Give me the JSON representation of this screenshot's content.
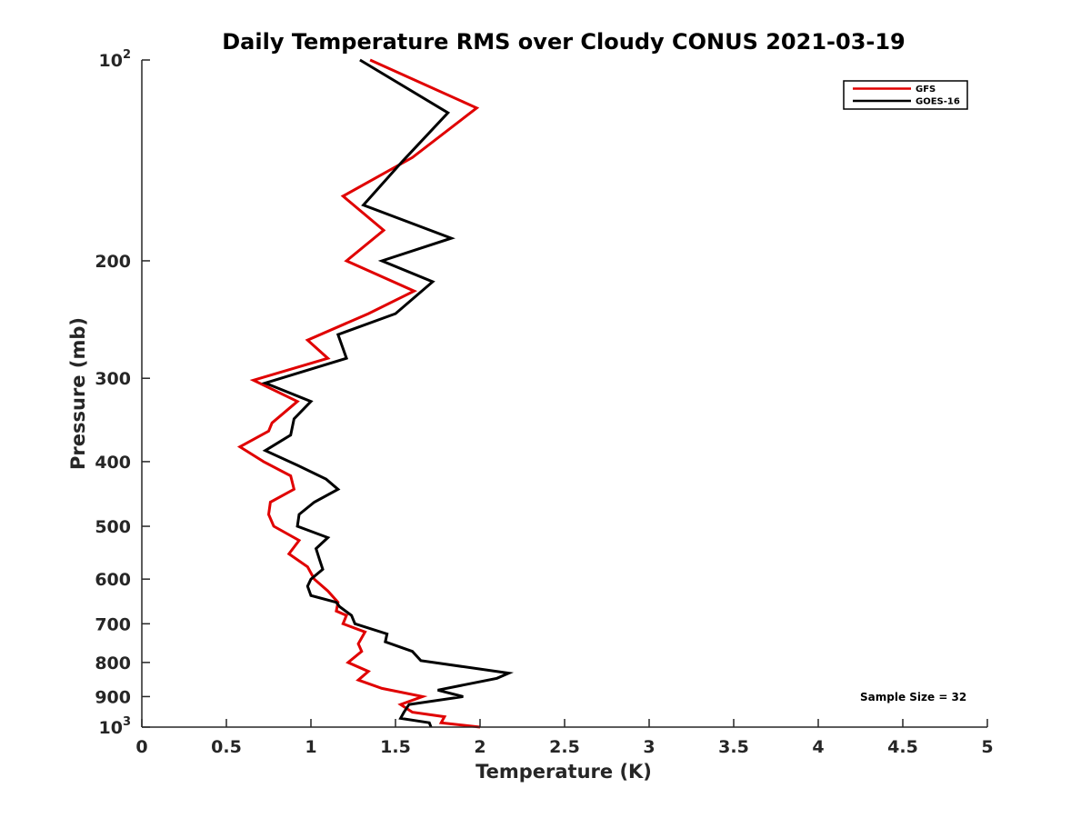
{
  "chart_data": {
    "type": "line",
    "title": "Daily Temperature RMS over Cloudy CONUS 2021-03-19",
    "xlabel": "Temperature (K)",
    "ylabel": "Pressure (mb)",
    "xlim": [
      0,
      5
    ],
    "ylim": [
      100,
      1000
    ],
    "yscale": "log",
    "yreverse": true,
    "xticks": [
      {
        "value": 0,
        "label": "0"
      },
      {
        "value": 0.5,
        "label": "0.5"
      },
      {
        "value": 1,
        "label": "1"
      },
      {
        "value": 1.5,
        "label": "1.5"
      },
      {
        "value": 2,
        "label": "2"
      },
      {
        "value": 2.5,
        "label": "2.5"
      },
      {
        "value": 3,
        "label": "3"
      },
      {
        "value": 3.5,
        "label": "3.5"
      },
      {
        "value": 4,
        "label": "4"
      },
      {
        "value": 4.5,
        "label": "4.5"
      },
      {
        "value": 5,
        "label": "5"
      }
    ],
    "yticks": [
      {
        "value": 100,
        "base": "10",
        "exp": "2"
      },
      {
        "value": 200,
        "label": "200"
      },
      {
        "value": 300,
        "label": "300"
      },
      {
        "value": 400,
        "label": "400"
      },
      {
        "value": 500,
        "label": "500"
      },
      {
        "value": 600,
        "label": "600"
      },
      {
        "value": 700,
        "label": "700"
      },
      {
        "value": 800,
        "label": "800"
      },
      {
        "value": 900,
        "label": "900"
      },
      {
        "value": 1000,
        "base": "10",
        "exp": "3"
      }
    ],
    "legend_position": "top-right",
    "annotation": "Sample Size = 32",
    "series": [
      {
        "name": "GFS",
        "color": "#e00000",
        "points": [
          [
            1.35,
            100
          ],
          [
            1.98,
            118
          ],
          [
            1.6,
            140
          ],
          [
            1.19,
            160
          ],
          [
            1.43,
            180
          ],
          [
            1.21,
            200
          ],
          [
            1.61,
            222
          ],
          [
            1.34,
            240
          ],
          [
            0.98,
            263
          ],
          [
            1.1,
            280
          ],
          [
            0.66,
            302
          ],
          [
            0.92,
            325
          ],
          [
            0.77,
            350
          ],
          [
            0.75,
            360
          ],
          [
            0.58,
            380
          ],
          [
            0.72,
            400
          ],
          [
            0.88,
            420
          ],
          [
            0.9,
            440
          ],
          [
            0.76,
            460
          ],
          [
            0.75,
            480
          ],
          [
            0.78,
            500
          ],
          [
            0.93,
            525
          ],
          [
            0.87,
            550
          ],
          [
            0.98,
            575
          ],
          [
            1.02,
            600
          ],
          [
            1.1,
            625
          ],
          [
            1.16,
            650
          ],
          [
            1.15,
            670
          ],
          [
            1.21,
            680
          ],
          [
            1.19,
            700
          ],
          [
            1.32,
            720
          ],
          [
            1.28,
            750
          ],
          [
            1.3,
            770
          ],
          [
            1.22,
            800
          ],
          [
            1.34,
            825
          ],
          [
            1.28,
            850
          ],
          [
            1.42,
            875
          ],
          [
            1.66,
            900
          ],
          [
            1.53,
            925
          ],
          [
            1.6,
            950
          ],
          [
            1.79,
            965
          ],
          [
            1.77,
            985
          ],
          [
            2.0,
            1000
          ]
        ]
      },
      {
        "name": "GOES-16",
        "color": "#000000",
        "points": [
          [
            1.29,
            100
          ],
          [
            1.81,
            120
          ],
          [
            1.54,
            142
          ],
          [
            1.31,
            165
          ],
          [
            1.83,
            185
          ],
          [
            1.42,
            200
          ],
          [
            1.72,
            215
          ],
          [
            1.5,
            240
          ],
          [
            1.16,
            258
          ],
          [
            1.21,
            280
          ],
          [
            0.73,
            305
          ],
          [
            1.0,
            325
          ],
          [
            0.9,
            345
          ],
          [
            0.88,
            365
          ],
          [
            0.73,
            385
          ],
          [
            0.92,
            405
          ],
          [
            1.09,
            425
          ],
          [
            1.16,
            440
          ],
          [
            1.02,
            460
          ],
          [
            0.93,
            480
          ],
          [
            0.92,
            500
          ],
          [
            1.1,
            520
          ],
          [
            1.03,
            540
          ],
          [
            1.05,
            560
          ],
          [
            1.07,
            580
          ],
          [
            1.0,
            600
          ],
          [
            0.98,
            615
          ],
          [
            1.0,
            635
          ],
          [
            1.15,
            650
          ],
          [
            1.17,
            660
          ],
          [
            1.24,
            680
          ],
          [
            1.26,
            700
          ],
          [
            1.45,
            725
          ],
          [
            1.44,
            745
          ],
          [
            1.6,
            770
          ],
          [
            1.65,
            795
          ],
          [
            2.17,
            830
          ],
          [
            2.1,
            845
          ],
          [
            1.75,
            880
          ],
          [
            1.9,
            900
          ],
          [
            1.58,
            925
          ],
          [
            1.55,
            950
          ],
          [
            1.53,
            970
          ],
          [
            1.7,
            985
          ],
          [
            1.71,
            1000
          ]
        ]
      }
    ]
  }
}
